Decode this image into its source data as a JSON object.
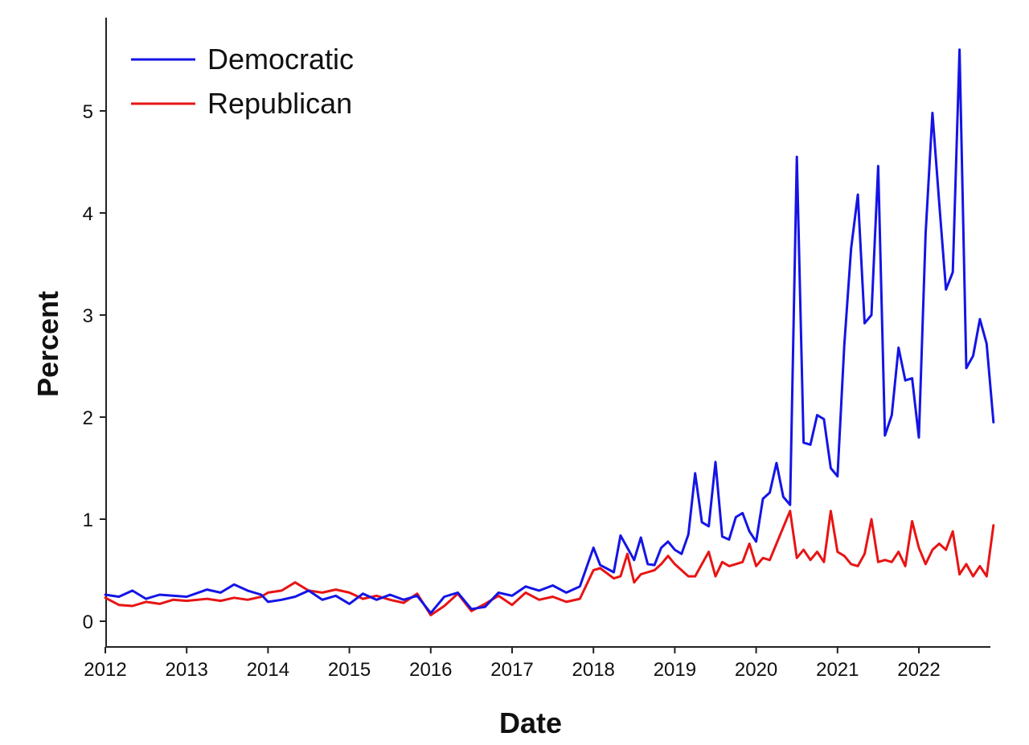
{
  "chart_data": {
    "type": "line",
    "xlabel": "Date",
    "ylabel": "Percent",
    "x_ticks": [
      "2012",
      "2013",
      "2014",
      "2015",
      "2016",
      "2017",
      "2018",
      "2019",
      "2020",
      "2021",
      "2022"
    ],
    "y_ticks": [
      "0",
      "1",
      "2",
      "3",
      "4",
      "5"
    ],
    "xlim": [
      "2012-01",
      "2022-12"
    ],
    "ylim": [
      -0.25,
      5.9
    ],
    "grid": false,
    "legend_position": "top-left",
    "series": [
      {
        "name": "Democratic",
        "color": "#1414e6",
        "points": [
          [
            "2012-01",
            0.26
          ],
          [
            "2012-03",
            0.24
          ],
          [
            "2012-05",
            0.3
          ],
          [
            "2012-07",
            0.22
          ],
          [
            "2012-09",
            0.26
          ],
          [
            "2012-11",
            0.25
          ],
          [
            "2013-01",
            0.24
          ],
          [
            "2013-04",
            0.31
          ],
          [
            "2013-06",
            0.28
          ],
          [
            "2013-08",
            0.36
          ],
          [
            "2013-10",
            0.3
          ],
          [
            "2013-12",
            0.26
          ],
          [
            "2014-01",
            0.19
          ],
          [
            "2014-03",
            0.21
          ],
          [
            "2014-05",
            0.24
          ],
          [
            "2014-07",
            0.3
          ],
          [
            "2014-09",
            0.21
          ],
          [
            "2014-11",
            0.25
          ],
          [
            "2015-01",
            0.17
          ],
          [
            "2015-03",
            0.27
          ],
          [
            "2015-05",
            0.21
          ],
          [
            "2015-07",
            0.26
          ],
          [
            "2015-09",
            0.21
          ],
          [
            "2015-11",
            0.25
          ],
          [
            "2016-01",
            0.08
          ],
          [
            "2016-03",
            0.24
          ],
          [
            "2016-05",
            0.28
          ],
          [
            "2016-07",
            0.12
          ],
          [
            "2016-09",
            0.14
          ],
          [
            "2016-11",
            0.28
          ],
          [
            "2017-01",
            0.25
          ],
          [
            "2017-03",
            0.34
          ],
          [
            "2017-05",
            0.3
          ],
          [
            "2017-07",
            0.35
          ],
          [
            "2017-09",
            0.28
          ],
          [
            "2017-11",
            0.34
          ],
          [
            "2018-01",
            0.72
          ],
          [
            "2018-02",
            0.55
          ],
          [
            "2018-04",
            0.48
          ],
          [
            "2018-05",
            0.84
          ],
          [
            "2018-06",
            0.72
          ],
          [
            "2018-07",
            0.6
          ],
          [
            "2018-08",
            0.82
          ],
          [
            "2018-09",
            0.56
          ],
          [
            "2018-10",
            0.55
          ],
          [
            "2018-11",
            0.72
          ],
          [
            "2018-12",
            0.78
          ],
          [
            "2019-01",
            0.7
          ],
          [
            "2019-02",
            0.66
          ],
          [
            "2019-03",
            0.85
          ],
          [
            "2019-04",
            1.45
          ],
          [
            "2019-05",
            0.97
          ],
          [
            "2019-06",
            0.93
          ],
          [
            "2019-07",
            1.56
          ],
          [
            "2019-08",
            0.83
          ],
          [
            "2019-09",
            0.8
          ],
          [
            "2019-10",
            1.02
          ],
          [
            "2019-11",
            1.06
          ],
          [
            "2019-12",
            0.88
          ],
          [
            "2020-01",
            0.78
          ],
          [
            "2020-02",
            1.2
          ],
          [
            "2020-03",
            1.26
          ],
          [
            "2020-04",
            1.55
          ],
          [
            "2020-05",
            1.22
          ],
          [
            "2020-06",
            1.14
          ],
          [
            "2020-07",
            4.55
          ],
          [
            "2020-08",
            1.75
          ],
          [
            "2020-09",
            1.73
          ],
          [
            "2020-10",
            2.02
          ],
          [
            "2020-11",
            1.98
          ],
          [
            "2020-12",
            1.5
          ],
          [
            "2021-01",
            1.42
          ],
          [
            "2021-02",
            2.7
          ],
          [
            "2021-03",
            3.65
          ],
          [
            "2021-04",
            4.18
          ],
          [
            "2021-05",
            2.92
          ],
          [
            "2021-06",
            3.0
          ],
          [
            "2021-07",
            4.46
          ],
          [
            "2021-08",
            1.82
          ],
          [
            "2021-09",
            2.02
          ],
          [
            "2021-10",
            2.68
          ],
          [
            "2021-11",
            2.36
          ],
          [
            "2021-12",
            2.38
          ],
          [
            "2022-01",
            1.8
          ],
          [
            "2022-02",
            3.8
          ],
          [
            "2022-03",
            4.98
          ],
          [
            "2022-04",
            4.1
          ],
          [
            "2022-05",
            3.25
          ],
          [
            "2022-06",
            3.42
          ],
          [
            "2022-07",
            5.6
          ],
          [
            "2022-08",
            2.48
          ],
          [
            "2022-09",
            2.6
          ],
          [
            "2022-10",
            2.96
          ],
          [
            "2022-11",
            2.72
          ],
          [
            "2022-12",
            1.95
          ]
        ]
      },
      {
        "name": "Republican",
        "color": "#e81414",
        "points": [
          [
            "2012-01",
            0.23
          ],
          [
            "2012-03",
            0.16
          ],
          [
            "2012-05",
            0.15
          ],
          [
            "2012-07",
            0.19
          ],
          [
            "2012-09",
            0.17
          ],
          [
            "2012-11",
            0.21
          ],
          [
            "2013-01",
            0.2
          ],
          [
            "2013-04",
            0.22
          ],
          [
            "2013-06",
            0.2
          ],
          [
            "2013-08",
            0.23
          ],
          [
            "2013-10",
            0.21
          ],
          [
            "2013-12",
            0.24
          ],
          [
            "2014-01",
            0.28
          ],
          [
            "2014-03",
            0.3
          ],
          [
            "2014-05",
            0.38
          ],
          [
            "2014-07",
            0.3
          ],
          [
            "2014-09",
            0.28
          ],
          [
            "2014-11",
            0.31
          ],
          [
            "2015-01",
            0.28
          ],
          [
            "2015-03",
            0.22
          ],
          [
            "2015-05",
            0.25
          ],
          [
            "2015-07",
            0.21
          ],
          [
            "2015-09",
            0.18
          ],
          [
            "2015-11",
            0.27
          ],
          [
            "2016-01",
            0.06
          ],
          [
            "2016-03",
            0.15
          ],
          [
            "2016-05",
            0.27
          ],
          [
            "2016-07",
            0.1
          ],
          [
            "2016-09",
            0.17
          ],
          [
            "2016-11",
            0.25
          ],
          [
            "2017-01",
            0.16
          ],
          [
            "2017-03",
            0.28
          ],
          [
            "2017-05",
            0.21
          ],
          [
            "2017-07",
            0.24
          ],
          [
            "2017-09",
            0.19
          ],
          [
            "2017-11",
            0.22
          ],
          [
            "2018-01",
            0.5
          ],
          [
            "2018-02",
            0.52
          ],
          [
            "2018-04",
            0.42
          ],
          [
            "2018-05",
            0.44
          ],
          [
            "2018-06",
            0.66
          ],
          [
            "2018-07",
            0.38
          ],
          [
            "2018-08",
            0.46
          ],
          [
            "2018-09",
            0.48
          ],
          [
            "2018-10",
            0.5
          ],
          [
            "2018-11",
            0.56
          ],
          [
            "2018-12",
            0.64
          ],
          [
            "2019-01",
            0.56
          ],
          [
            "2019-02",
            0.5
          ],
          [
            "2019-03",
            0.44
          ],
          [
            "2019-04",
            0.44
          ],
          [
            "2019-05",
            0.56
          ],
          [
            "2019-06",
            0.68
          ],
          [
            "2019-07",
            0.44
          ],
          [
            "2019-08",
            0.58
          ],
          [
            "2019-09",
            0.54
          ],
          [
            "2019-10",
            0.56
          ],
          [
            "2019-11",
            0.58
          ],
          [
            "2019-12",
            0.76
          ],
          [
            "2020-01",
            0.54
          ],
          [
            "2020-02",
            0.62
          ],
          [
            "2020-03",
            0.6
          ],
          [
            "2020-04",
            0.76
          ],
          [
            "2020-05",
            0.92
          ],
          [
            "2020-06",
            1.08
          ],
          [
            "2020-07",
            0.62
          ],
          [
            "2020-08",
            0.7
          ],
          [
            "2020-09",
            0.6
          ],
          [
            "2020-10",
            0.68
          ],
          [
            "2020-11",
            0.58
          ],
          [
            "2020-12",
            1.08
          ],
          [
            "2021-01",
            0.68
          ],
          [
            "2021-02",
            0.64
          ],
          [
            "2021-03",
            0.56
          ],
          [
            "2021-04",
            0.54
          ],
          [
            "2021-05",
            0.66
          ],
          [
            "2021-06",
            1.0
          ],
          [
            "2021-07",
            0.58
          ],
          [
            "2021-08",
            0.6
          ],
          [
            "2021-09",
            0.58
          ],
          [
            "2021-10",
            0.68
          ],
          [
            "2021-11",
            0.54
          ],
          [
            "2021-12",
            0.98
          ],
          [
            "2022-01",
            0.72
          ],
          [
            "2022-02",
            0.56
          ],
          [
            "2022-03",
            0.7
          ],
          [
            "2022-04",
            0.76
          ],
          [
            "2022-05",
            0.7
          ],
          [
            "2022-06",
            0.88
          ],
          [
            "2022-07",
            0.46
          ],
          [
            "2022-08",
            0.56
          ],
          [
            "2022-09",
            0.44
          ],
          [
            "2022-10",
            0.54
          ],
          [
            "2022-11",
            0.44
          ],
          [
            "2022-12",
            0.94
          ]
        ]
      }
    ]
  }
}
